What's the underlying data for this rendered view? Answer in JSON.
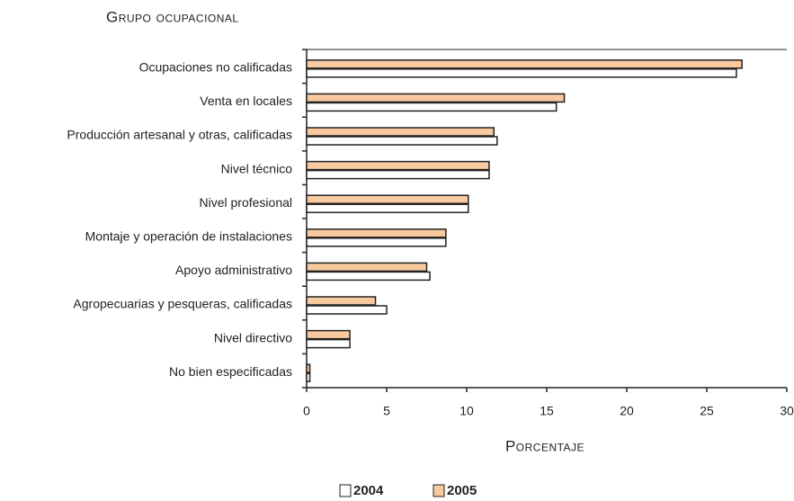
{
  "chart_data": {
    "type": "hbar",
    "title": "Grupo ocupacional",
    "xlabel": "Porcentaje",
    "categories": [
      "Ocupaciones no calificadas",
      "Venta en locales",
      "Producción artesanal y otras, calificadas",
      "Nivel técnico",
      "Nivel profesional",
      "Montaje y operación de instalaciones",
      "Apoyo administrativo",
      "Agropecuarias y pesqueras, calificadas",
      "Nivel directivo",
      "No bien especificadas"
    ],
    "series": [
      {
        "name": "2004",
        "color": "#ffffff",
        "values": [
          26.85,
          15.6,
          11.9,
          11.4,
          10.1,
          8.7,
          7.7,
          5.0,
          2.7,
          0.2
        ]
      },
      {
        "name": "2005",
        "color": "#f9c9a0",
        "values": [
          27.2,
          16.1,
          11.7,
          11.4,
          10.1,
          8.7,
          7.5,
          4.3,
          2.7,
          0.2
        ]
      }
    ],
    "xlim": [
      0,
      30
    ],
    "xticks": [
      0,
      5,
      10,
      15,
      20,
      25,
      30
    ]
  }
}
